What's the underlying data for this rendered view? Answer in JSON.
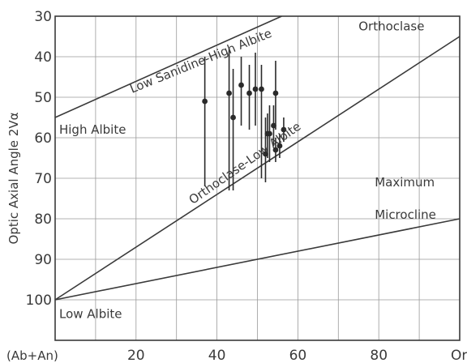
{
  "chart_data": {
    "type": "scatter",
    "xlim": [
      0,
      100
    ],
    "ylim": [
      30,
      110
    ],
    "y_inverted": true,
    "grid": true,
    "x_ticks": [
      {
        "value": 0,
        "label": "(Ab+An)"
      },
      {
        "value": 20,
        "label": "20"
      },
      {
        "value": 40,
        "label": "40"
      },
      {
        "value": 60,
        "label": "60"
      },
      {
        "value": 80,
        "label": "80"
      },
      {
        "value": 100,
        "label": "Or"
      }
    ],
    "y_ticks": [
      30,
      40,
      50,
      60,
      70,
      80,
      90,
      100
    ],
    "ylabel": "Optic Axial Angle 2Vα",
    "reference_lines": [
      {
        "name": "Low Sanidine-High Albite",
        "from": [
          0,
          55
        ],
        "to": [
          56,
          30
        ]
      },
      {
        "name": "Orthoclase-Low Albite",
        "from": [
          0,
          100
        ],
        "to": [
          100,
          35
        ]
      },
      {
        "name": "Maximum Microcline",
        "from": [
          0,
          100
        ],
        "to": [
          100,
          80
        ]
      }
    ],
    "labels": [
      {
        "text": "Low Sanidine-High Albite",
        "x": 19,
        "y": 49,
        "rotation": -22
      },
      {
        "text": "High Albite",
        "x": 1,
        "y": 59,
        "rotation": 0
      },
      {
        "text": "Orthoclase",
        "x": 75,
        "y": 33.5,
        "rotation": 0
      },
      {
        "text": "Orthoclase-Low Albite",
        "x": 34,
        "y": 76.5,
        "rotation": -35
      },
      {
        "text": "Maximum",
        "x": 79,
        "y": 72,
        "rotation": 0
      },
      {
        "text": "Microcline",
        "x": 79,
        "y": 80,
        "rotation": 0
      },
      {
        "text": "Low Albite",
        "x": 1,
        "y": 104.5,
        "rotation": 0
      }
    ],
    "points": [
      {
        "x": 37,
        "y": 51,
        "low": 40,
        "high": 72
      },
      {
        "x": 43,
        "y": 49,
        "low": 38,
        "high": 73
      },
      {
        "x": 44,
        "y": 55,
        "low": 43,
        "high": 73
      },
      {
        "x": 46,
        "y": 47,
        "low": 40,
        "high": 57
      },
      {
        "x": 48,
        "y": 49,
        "low": 42,
        "high": 58
      },
      {
        "x": 49.5,
        "y": 48,
        "low": 39,
        "high": 57
      },
      {
        "x": 51,
        "y": 48,
        "low": 42,
        "high": 70
      },
      {
        "x": 52,
        "y": 64,
        "low": 55,
        "high": 71
      },
      {
        "x": 52.5,
        "y": 59,
        "low": 54,
        "high": 65
      },
      {
        "x": 53,
        "y": 59,
        "low": 52,
        "high": 66
      },
      {
        "x": 54,
        "y": 57,
        "low": 52,
        "high": 62
      },
      {
        "x": 54.5,
        "y": 49,
        "low": 41,
        "high": 58
      },
      {
        "x": 54.5,
        "y": 63,
        "low": 60,
        "high": 66
      },
      {
        "x": 55.5,
        "y": 62,
        "low": 59,
        "high": 65
      },
      {
        "x": 56.5,
        "y": 58,
        "low": 55,
        "high": 61
      }
    ]
  }
}
